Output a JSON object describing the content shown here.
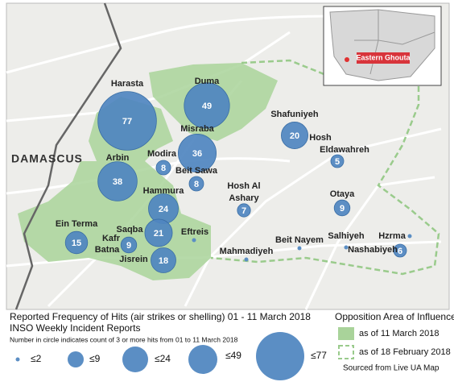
{
  "map_labels": {
    "city": "DAMASCUS",
    "inset": "Eastern Ghouta"
  },
  "places": [
    {
      "name": [
        "Harasta"
      ],
      "count": 77
    },
    {
      "name": [
        "Duma"
      ],
      "count": 49
    },
    {
      "name": [
        "Misraba"
      ],
      "count": 36
    },
    {
      "name": [
        "Shafuniyeh"
      ],
      "count": 20
    },
    {
      "name": [
        "Hosh",
        "Eldawahreh"
      ],
      "count": 5
    },
    {
      "name": [
        "Arbin"
      ],
      "count": 38
    },
    {
      "name": [
        "Modira"
      ],
      "count": 8
    },
    {
      "name": [
        "Beit Sawa"
      ],
      "count": 8
    },
    {
      "name": [
        "Hosh Al",
        "Ashary"
      ],
      "count": 7
    },
    {
      "name": [
        "Otaya"
      ],
      "count": 9
    },
    {
      "name": [
        "Hammura"
      ],
      "count": 24
    },
    {
      "name": [
        "Ein Terma"
      ],
      "count": 15
    },
    {
      "name": [
        "Saqba"
      ],
      "count": 21
    },
    {
      "name": [
        "Kafr",
        "Batna"
      ],
      "count": 9
    },
    {
      "name": [
        "Jisrein"
      ],
      "count": 18
    },
    {
      "name": [
        "Eftreis"
      ],
      "count": null
    },
    {
      "name": [
        "Mahmadiyeh"
      ],
      "count": null
    },
    {
      "name": [
        "Beit Nayem"
      ],
      "count": null
    },
    {
      "name": [
        "Salhiyeh"
      ],
      "count": null
    },
    {
      "name": [
        "Hzrma"
      ],
      "count": null
    },
    {
      "name": [
        "Nashabiyeh"
      ],
      "count": 6
    }
  ],
  "legend": {
    "title": "Reported Frequency of Hits (air strikes or shelling) 01 - 11 March 2018",
    "subtitle": "INSO Weekly Incident Reports",
    "note": "Number in circle indicates count of 3 or more hits from 01 to 11 March 2018",
    "sizes": [
      "≤2",
      "≤9",
      "≤24",
      "≤49",
      "≤77"
    ],
    "area_title": "Opposition Area of Influence",
    "area_current": "as of 11 March 2018",
    "area_previous": "as of 18 February 2018",
    "source": "Sourced from Live UA Map"
  }
}
